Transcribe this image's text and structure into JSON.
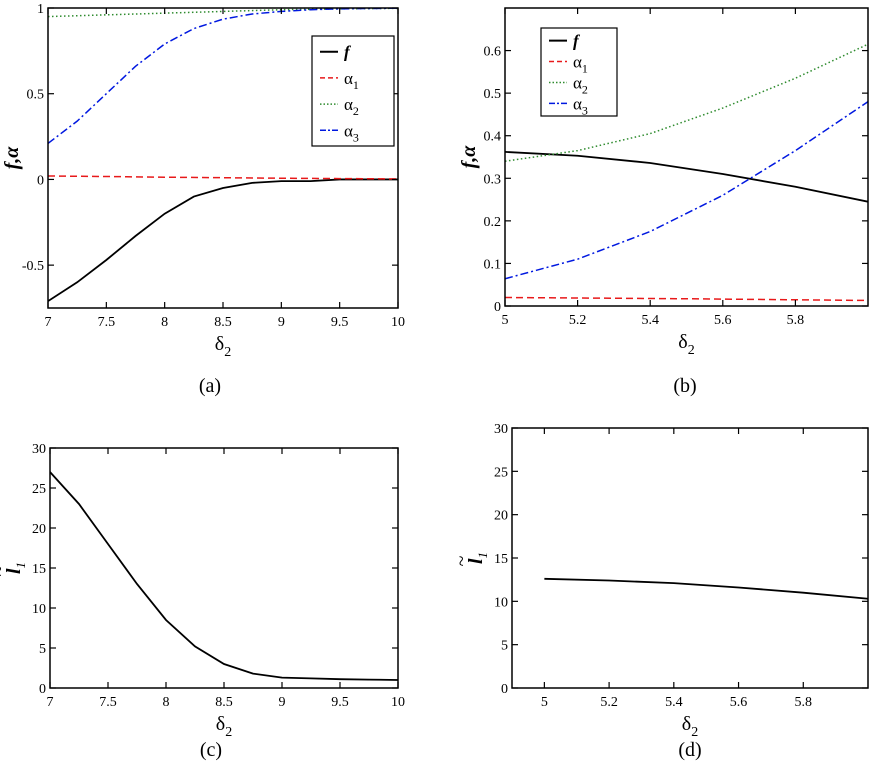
{
  "chart_data": [
    {
      "id": "a",
      "type": "line",
      "caption": "(a)",
      "xlabel": "δ",
      "xlabel_sub": "2",
      "ylabel": "f,α",
      "xlim": [
        7,
        10
      ],
      "ylim": [
        -0.75,
        1
      ],
      "xticks": [
        7,
        7.5,
        8,
        8.5,
        9,
        9.5,
        10
      ],
      "xtick_labels": [
        "7",
        "7.5",
        "8",
        "8.5",
        "9",
        "9.5",
        "10"
      ],
      "yticks": [
        -0.5,
        0,
        0.5,
        1
      ],
      "ytick_labels": [
        "-0.5",
        "0",
        "0.5",
        "1"
      ],
      "legend": "top-right",
      "series": [
        {
          "name": "f",
          "sub": "",
          "color": "#000000",
          "dash": "solid",
          "x": [
            7,
            7.25,
            7.5,
            7.75,
            8,
            8.25,
            8.5,
            8.75,
            9,
            9.25,
            9.5,
            9.75,
            10
          ],
          "y": [
            -0.71,
            -0.6,
            -0.47,
            -0.33,
            -0.2,
            -0.1,
            -0.05,
            -0.02,
            -0.01,
            -0.01,
            0,
            0,
            0
          ]
        },
        {
          "name": "α",
          "sub": "1",
          "color": "#e8191a",
          "dash": "dashed",
          "x": [
            7,
            7.5,
            8,
            8.5,
            9,
            9.5,
            10
          ],
          "y": [
            0.02,
            0.017,
            0.013,
            0.01,
            0.007,
            0.005,
            0.003
          ]
        },
        {
          "name": "α",
          "sub": "2",
          "color": "#2e8b2e",
          "dash": "dotted",
          "x": [
            7,
            7.5,
            8,
            8.5,
            9,
            9.5,
            10
          ],
          "y": [
            0.95,
            0.96,
            0.97,
            0.98,
            0.99,
            0.995,
            0.998
          ]
        },
        {
          "name": "α",
          "sub": "3",
          "color": "#0018e0",
          "dash": "dashdot",
          "x": [
            7,
            7.25,
            7.5,
            7.75,
            8,
            8.25,
            8.5,
            8.75,
            9,
            9.25,
            9.5,
            9.75,
            10
          ],
          "y": [
            0.21,
            0.34,
            0.5,
            0.66,
            0.79,
            0.88,
            0.935,
            0.965,
            0.98,
            0.99,
            0.995,
            0.997,
            0.999
          ]
        }
      ]
    },
    {
      "id": "b",
      "type": "line",
      "caption": "(b)",
      "xlabel": "δ",
      "xlabel_sub": "2",
      "ylabel": "f,α",
      "xlim": [
        5,
        6
      ],
      "ylim": [
        0,
        0.7
      ],
      "xticks": [
        5,
        5.2,
        5.4,
        5.6,
        5.8
      ],
      "xtick_labels": [
        "5",
        "5.2",
        "5.4",
        "5.6",
        "5.8"
      ],
      "yticks": [
        0,
        0.1,
        0.2,
        0.3,
        0.4,
        0.5,
        0.6
      ],
      "ytick_labels": [
        "0",
        "0.1",
        "0.2",
        "0.3",
        "0.4",
        "0.5",
        "0.6"
      ],
      "legend": "top-left",
      "series": [
        {
          "name": "f",
          "sub": "",
          "color": "#000000",
          "dash": "solid",
          "x": [
            5,
            5.2,
            5.4,
            5.6,
            5.8,
            6
          ],
          "y": [
            0.362,
            0.353,
            0.336,
            0.31,
            0.28,
            0.245
          ]
        },
        {
          "name": "α",
          "sub": "1",
          "color": "#e8191a",
          "dash": "dashed",
          "x": [
            5,
            5.5,
            6
          ],
          "y": [
            0.02,
            0.017,
            0.013
          ]
        },
        {
          "name": "α",
          "sub": "2",
          "color": "#2e8b2e",
          "dash": "dotted",
          "x": [
            5,
            5.2,
            5.4,
            5.6,
            5.8,
            6
          ],
          "y": [
            0.34,
            0.365,
            0.405,
            0.465,
            0.535,
            0.615
          ]
        },
        {
          "name": "α",
          "sub": "3",
          "color": "#0018e0",
          "dash": "dashdot",
          "x": [
            5,
            5.2,
            5.4,
            5.6,
            5.8,
            6
          ],
          "y": [
            0.064,
            0.11,
            0.175,
            0.26,
            0.365,
            0.48
          ]
        }
      ]
    },
    {
      "id": "c",
      "type": "line",
      "caption": "(c)",
      "xlabel": "δ",
      "xlabel_sub": "2",
      "ylabel": "l",
      "ylabel_sub": "1",
      "ylabel_accent": "~",
      "xlim": [
        7,
        10
      ],
      "ylim": [
        0,
        30
      ],
      "xticks": [
        7,
        7.5,
        8,
        8.5,
        9,
        9.5,
        10
      ],
      "xtick_labels": [
        "7",
        "7.5",
        "8",
        "8.5",
        "9",
        "9.5",
        "10"
      ],
      "yticks": [
        0,
        5,
        10,
        15,
        20,
        25,
        30
      ],
      "ytick_labels": [
        "0",
        "5",
        "10",
        "15",
        "20",
        "25",
        "30"
      ],
      "series": [
        {
          "name": "",
          "color": "#000000",
          "dash": "solid",
          "x": [
            7,
            7.25,
            7.5,
            7.75,
            8,
            8.25,
            8.5,
            8.75,
            9,
            9.25,
            9.5,
            9.75,
            10
          ],
          "y": [
            27,
            23,
            18,
            13,
            8.5,
            5.2,
            3,
            1.8,
            1.3,
            1.2,
            1.1,
            1.05,
            1
          ]
        }
      ]
    },
    {
      "id": "d",
      "type": "line",
      "caption": "(d)",
      "xlabel": "δ",
      "xlabel_sub": "2",
      "ylabel": "l",
      "ylabel_sub": "1",
      "ylabel_accent": "~",
      "xlim": [
        4.9,
        6
      ],
      "ylim": [
        0,
        30
      ],
      "xticks": [
        5,
        5.2,
        5.4,
        5.6,
        5.8
      ],
      "xtick_labels": [
        "5",
        "5.2",
        "5.4",
        "5.6",
        "5.8"
      ],
      "yticks": [
        0,
        5,
        10,
        15,
        20,
        25,
        30
      ],
      "ytick_labels": [
        "0",
        "5",
        "10",
        "15",
        "20",
        "25",
        "30"
      ],
      "series": [
        {
          "name": "",
          "color": "#000000",
          "dash": "solid",
          "x": [
            5,
            5.2,
            5.4,
            5.6,
            5.8,
            6
          ],
          "y": [
            12.6,
            12.4,
            12.1,
            11.6,
            11,
            10.3
          ]
        }
      ]
    }
  ]
}
